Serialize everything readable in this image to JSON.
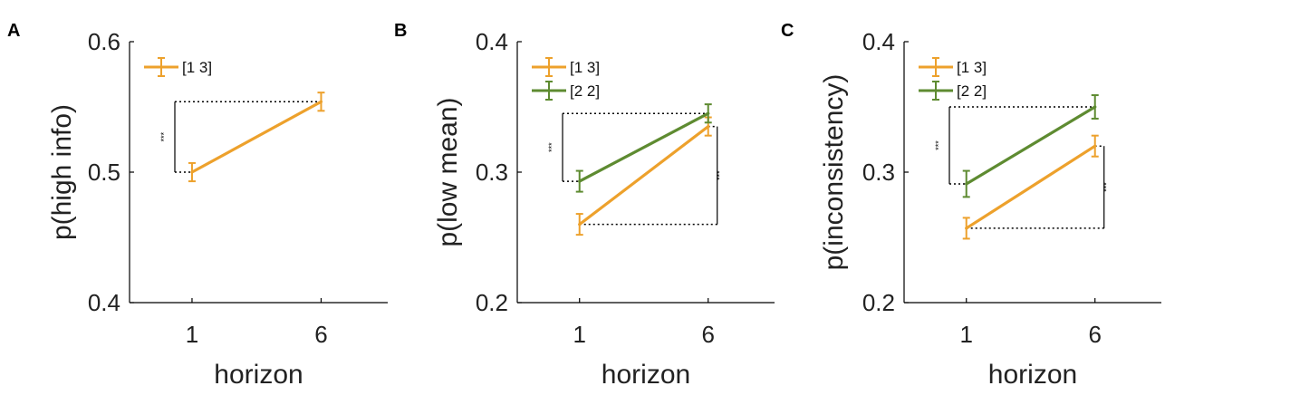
{
  "chart_data": [
    {
      "type": "line",
      "panel_label": "A",
      "xlabel": "horizon",
      "ylabel": "p(high info)",
      "x": [
        "1",
        "6"
      ],
      "ylim": [
        0.4,
        0.6
      ],
      "yticks": [
        "0.4",
        "0.5",
        "0.6"
      ],
      "series": [
        {
          "name": "[1 3]",
          "color": "#EDA12C",
          "values": [
            0.5,
            0.554
          ],
          "errors": [
            0.007,
            0.007
          ]
        }
      ],
      "significance": [
        {
          "label": "***",
          "x_side": "left",
          "from": 0.5,
          "to": 0.554
        }
      ],
      "legend": "top-left",
      "grid": false
    },
    {
      "type": "line",
      "panel_label": "B",
      "xlabel": "horizon",
      "ylabel": "p(low mean)",
      "x": [
        "1",
        "6"
      ],
      "ylim": [
        0.2,
        0.4
      ],
      "yticks": [
        "0.2",
        "0.3",
        "0.4"
      ],
      "series": [
        {
          "name": "[1 3]",
          "color": "#EDA12C",
          "values": [
            0.26,
            0.335
          ],
          "errors": [
            0.008,
            0.007
          ]
        },
        {
          "name": "[2 2]",
          "color": "#5E8B31",
          "values": [
            0.293,
            0.345
          ],
          "errors": [
            0.008,
            0.007
          ]
        }
      ],
      "significance": [
        {
          "label": "***",
          "x_side": "left",
          "from": 0.293,
          "to": 0.345
        },
        {
          "label": "***",
          "x_side": "right",
          "from": 0.26,
          "to": 0.335
        }
      ],
      "legend": "top-left",
      "grid": false
    },
    {
      "type": "line",
      "panel_label": "C",
      "xlabel": "horizon",
      "ylabel": "p(inconsistency)",
      "x": [
        "1",
        "6"
      ],
      "ylim": [
        0.2,
        0.4
      ],
      "yticks": [
        "0.2",
        "0.3",
        "0.4"
      ],
      "series": [
        {
          "name": "[1 3]",
          "color": "#EDA12C",
          "values": [
            0.257,
            0.32
          ],
          "errors": [
            0.008,
            0.008
          ]
        },
        {
          "name": "[2 2]",
          "color": "#5E8B31",
          "values": [
            0.291,
            0.35
          ],
          "errors": [
            0.01,
            0.009
          ]
        }
      ],
      "significance": [
        {
          "label": "***",
          "x_side": "left",
          "from": 0.291,
          "to": 0.35
        },
        {
          "label": "***",
          "x_side": "right",
          "from": 0.257,
          "to": 0.32
        }
      ],
      "legend": "top-left",
      "grid": false
    }
  ]
}
